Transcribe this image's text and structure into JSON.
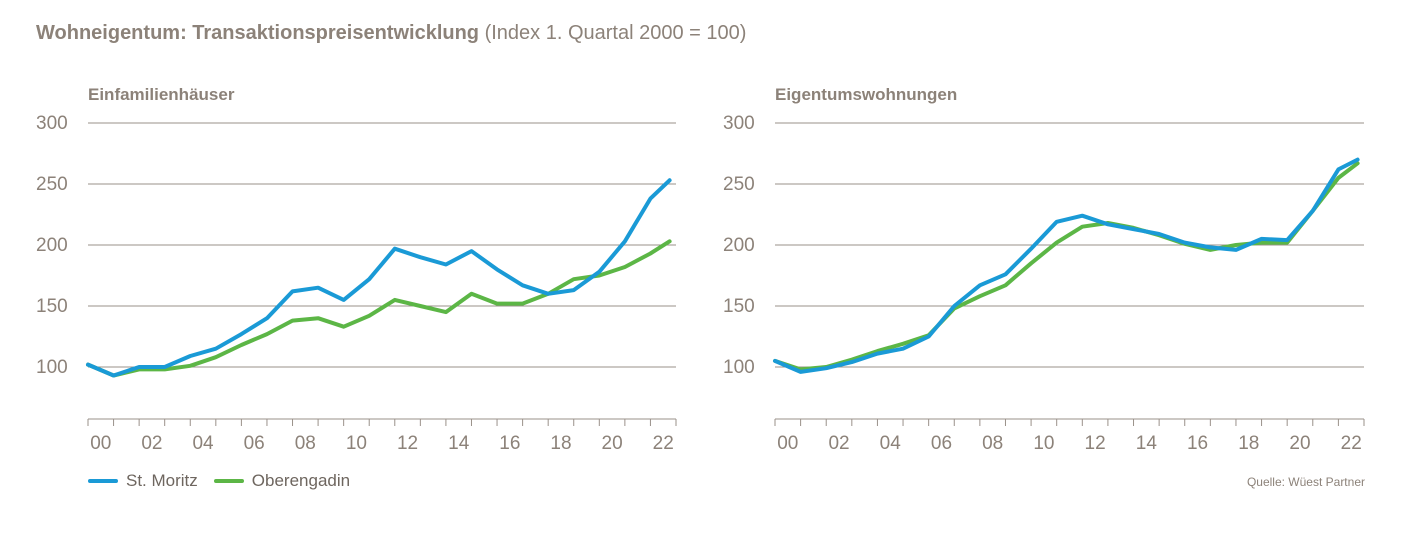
{
  "header": {
    "title_main": "Wohneigentum: Transaktionspreisentwicklung",
    "title_sub": "(Index 1. Quartal 2000 = 100)"
  },
  "colors": {
    "st_moritz": "#1a9ad6",
    "oberengadin": "#5cb646",
    "text": "#8c8279",
    "grid": "#9a918a"
  },
  "legend": {
    "items": [
      "St. Moritz",
      "Oberengadin"
    ]
  },
  "source": "Quelle: Wüest Partner",
  "chart_data": [
    {
      "type": "line",
      "title": "Einfamilienhäuser",
      "ylim": [
        50,
        300
      ],
      "yticks": [
        100,
        150,
        200,
        250,
        300
      ],
      "x_tick_labels": [
        "00",
        "02",
        "04",
        "06",
        "08",
        "10",
        "12",
        "14",
        "16",
        "18",
        "20",
        "22"
      ],
      "series": [
        {
          "name": "St. Moritz",
          "points": [
            [
              2000,
              102
            ],
            [
              2001,
              93
            ],
            [
              2002,
              100
            ],
            [
              2003,
              100
            ],
            [
              2004,
              109
            ],
            [
              2005,
              115
            ],
            [
              2006,
              127
            ],
            [
              2007,
              140
            ],
            [
              2008,
              162
            ],
            [
              2009,
              165
            ],
            [
              2010,
              155
            ],
            [
              2011,
              172
            ],
            [
              2012,
              197
            ],
            [
              2013,
              190
            ],
            [
              2014,
              184
            ],
            [
              2015,
              195
            ],
            [
              2016,
              180
            ],
            [
              2017,
              167
            ],
            [
              2018,
              160
            ],
            [
              2019,
              163
            ],
            [
              2020,
              178
            ],
            [
              2021,
              203
            ],
            [
              2022,
              238
            ],
            [
              2022.75,
              253
            ]
          ]
        },
        {
          "name": "Oberengadin",
          "points": [
            [
              2000,
              102
            ],
            [
              2001,
              93
            ],
            [
              2002,
              98
            ],
            [
              2003,
              98
            ],
            [
              2004,
              101
            ],
            [
              2005,
              108
            ],
            [
              2006,
              118
            ],
            [
              2007,
              127
            ],
            [
              2008,
              138
            ],
            [
              2009,
              140
            ],
            [
              2010,
              133
            ],
            [
              2011,
              142
            ],
            [
              2012,
              155
            ],
            [
              2013,
              150
            ],
            [
              2014,
              145
            ],
            [
              2015,
              160
            ],
            [
              2016,
              152
            ],
            [
              2017,
              152
            ],
            [
              2018,
              160
            ],
            [
              2019,
              172
            ],
            [
              2020,
              175
            ],
            [
              2021,
              182
            ],
            [
              2022,
              193
            ],
            [
              2022.75,
              203
            ]
          ]
        }
      ]
    },
    {
      "type": "line",
      "title": "Eigentumswohnungen",
      "ylim": [
        50,
        300
      ],
      "yticks": [
        100,
        150,
        200,
        250,
        300
      ],
      "x_tick_labels": [
        "00",
        "02",
        "04",
        "06",
        "08",
        "10",
        "12",
        "14",
        "16",
        "18",
        "20",
        "22"
      ],
      "series": [
        {
          "name": "St. Moritz",
          "points": [
            [
              2000,
              105
            ],
            [
              2001,
              96
            ],
            [
              2002,
              99
            ],
            [
              2003,
              104
            ],
            [
              2004,
              111
            ],
            [
              2005,
              115
            ],
            [
              2006,
              125
            ],
            [
              2007,
              150
            ],
            [
              2008,
              167
            ],
            [
              2009,
              176
            ],
            [
              2010,
              197
            ],
            [
              2011,
              219
            ],
            [
              2012,
              224
            ],
            [
              2013,
              217
            ],
            [
              2014,
              213
            ],
            [
              2015,
              209
            ],
            [
              2016,
              202
            ],
            [
              2017,
              198
            ],
            [
              2018,
              196
            ],
            [
              2019,
              205
            ],
            [
              2020,
              204
            ],
            [
              2021,
              228
            ],
            [
              2022,
              262
            ],
            [
              2022.75,
              270
            ]
          ]
        },
        {
          "name": "Oberengadin",
          "points": [
            [
              2000,
              105
            ],
            [
              2001,
              98
            ],
            [
              2002,
              100
            ],
            [
              2003,
              106
            ],
            [
              2004,
              113
            ],
            [
              2005,
              119
            ],
            [
              2006,
              126
            ],
            [
              2007,
              148
            ],
            [
              2008,
              158
            ],
            [
              2009,
              167
            ],
            [
              2010,
              185
            ],
            [
              2011,
              202
            ],
            [
              2012,
              215
            ],
            [
              2013,
              218
            ],
            [
              2014,
              214
            ],
            [
              2015,
              208
            ],
            [
              2016,
              201
            ],
            [
              2017,
              196
            ],
            [
              2018,
              200
            ],
            [
              2019,
              202
            ],
            [
              2020,
              202
            ],
            [
              2021,
              228
            ],
            [
              2022,
              255
            ],
            [
              2022.75,
              267
            ]
          ]
        }
      ]
    }
  ]
}
